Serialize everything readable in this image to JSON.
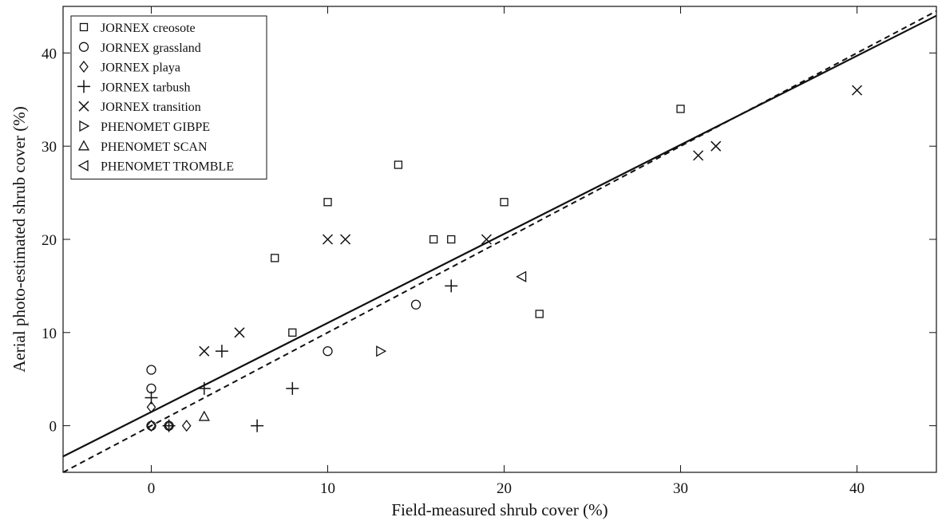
{
  "chart_data": {
    "type": "scatter",
    "xlabel": "Field-measured shrub cover (%)",
    "ylabel": "Aerial photo-estimated shrub cover (%)",
    "xlim": [
      -5,
      44.5
    ],
    "ylim": [
      -5,
      45
    ],
    "xticks": [
      0,
      10,
      20,
      30,
      40
    ],
    "yticks": [
      0,
      10,
      20,
      30,
      40
    ],
    "grid": false,
    "legend_position": "top-left",
    "series": [
      {
        "name": "JORNEX creosote",
        "marker": "square",
        "points": [
          [
            7,
            18
          ],
          [
            8,
            10
          ],
          [
            10,
            24
          ],
          [
            14,
            28
          ],
          [
            16,
            20
          ],
          [
            17,
            20
          ],
          [
            20,
            24
          ],
          [
            22,
            12
          ],
          [
            30,
            34
          ]
        ]
      },
      {
        "name": "JORNEX grassland",
        "marker": "circle",
        "points": [
          [
            0,
            6
          ],
          [
            0,
            4
          ],
          [
            0,
            0
          ],
          [
            1,
            0
          ],
          [
            10,
            8
          ],
          [
            15,
            13
          ]
        ]
      },
      {
        "name": "JORNEX playa",
        "marker": "diamond",
        "points": [
          [
            0,
            2
          ],
          [
            0,
            0
          ],
          [
            1,
            0
          ],
          [
            2,
            0
          ]
        ]
      },
      {
        "name": "JORNEX tarbush",
        "marker": "plus",
        "points": [
          [
            0,
            3
          ],
          [
            1,
            0
          ],
          [
            3,
            4
          ],
          [
            4,
            8
          ],
          [
            6,
            0
          ],
          [
            8,
            4
          ],
          [
            17,
            15
          ]
        ]
      },
      {
        "name": "JORNEX transition",
        "marker": "x",
        "points": [
          [
            3,
            8
          ],
          [
            5,
            10
          ],
          [
            10,
            20
          ],
          [
            11,
            20
          ],
          [
            19,
            20
          ],
          [
            31,
            29
          ],
          [
            32,
            30
          ],
          [
            40,
            36
          ]
        ]
      },
      {
        "name": "PHENOMET GIBPE",
        "marker": "triangle-right",
        "points": [
          [
            13,
            8
          ]
        ]
      },
      {
        "name": "PHENOMET SCAN",
        "marker": "triangle-up",
        "points": [
          [
            3,
            1
          ]
        ]
      },
      {
        "name": "PHENOMET TROMBLE",
        "marker": "triangle-left",
        "points": [
          [
            21,
            16
          ]
        ]
      }
    ],
    "lines": [
      {
        "style": "solid",
        "x": [
          -5,
          44.5
        ],
        "y": [
          -3.3,
          44
        ]
      },
      {
        "style": "dashed",
        "x": [
          -5,
          44.5
        ],
        "y": [
          -5,
          44.5
        ]
      }
    ]
  }
}
